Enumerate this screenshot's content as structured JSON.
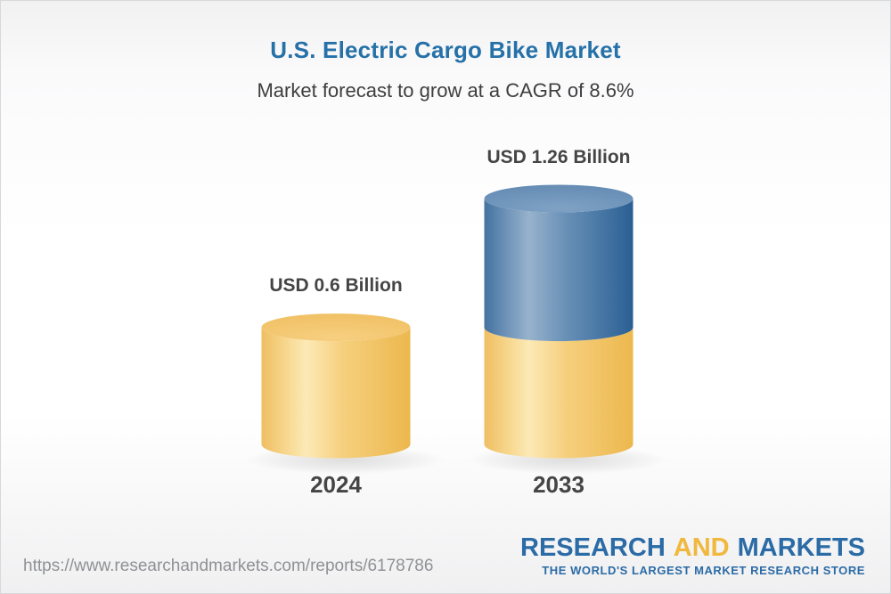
{
  "header": {
    "title": "U.S. Electric Cargo Bike Market",
    "subtitle": "Market forecast to grow at a CAGR of 8.6%"
  },
  "chart_data": {
    "type": "bar",
    "subtype": "3d-stacked-cylinder",
    "title": "U.S. Electric Cargo Bike Market",
    "subtitle": "Market forecast to grow at a CAGR of 8.6%",
    "unit": "USD Billion",
    "cagr_pct": 8.6,
    "categories": [
      "2024",
      "2033"
    ],
    "values": [
      0.6,
      1.26
    ],
    "value_labels": [
      "USD 0.6 Billion",
      "USD 1.26 Billion"
    ],
    "legend": "none",
    "axes": "none",
    "bars": [
      {
        "category": "2024",
        "total": 0.6,
        "segments": [
          {
            "name": "market-size-2024",
            "value": 0.6,
            "color": "gold"
          }
        ]
      },
      {
        "category": "2033",
        "total": 1.26,
        "segments": [
          {
            "name": "base-2024-value",
            "value": 0.6,
            "color": "gold"
          },
          {
            "name": "growth-to-2033",
            "value": 0.66,
            "color": "blue"
          }
        ]
      }
    ],
    "palette": {
      "gold": {
        "body": [
          "#EFBE62",
          "#F7D88F",
          "#FCE9B6",
          "#F6CF7D",
          "#ECB84E"
        ],
        "top_inner": "#F7CF80",
        "top_outer": "#F0BF62"
      },
      "blue": {
        "body": [
          "#44729F",
          "#7497BB",
          "#97B2CC",
          "#6890B6",
          "#2A5F94"
        ],
        "top_inner": "#7FA2C4",
        "top_outer": "#638AB3"
      }
    },
    "shadow_color": "#9a9a9a"
  },
  "footer": {
    "url": "https://www.researchandmarkets.com/reports/6178786",
    "logo": {
      "word1": "RESEARCH",
      "word2": "AND",
      "word3": "MARKETS",
      "tagline": "THE WORLD'S LARGEST MARKET RESEARCH STORE",
      "blue": "#2b6ba6",
      "yellow": "#f0b83d"
    }
  }
}
